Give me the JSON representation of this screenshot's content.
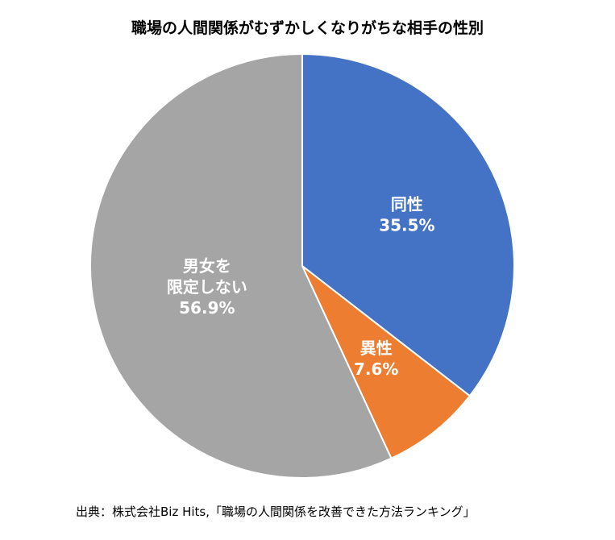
{
  "chart_data": {
    "type": "pie",
    "title": "職場の人間関係がむずかしくなりがちな相手の性別",
    "slices": [
      {
        "name": "同性",
        "label_lines": [
          "同性"
        ],
        "value": 35.5,
        "value_label": "35.5%",
        "color": "#4472c4"
      },
      {
        "name": "異性",
        "label_lines": [
          "異性"
        ],
        "value": 7.6,
        "value_label": "7.6%",
        "color": "#ed7d31"
      },
      {
        "name": "男女を限定しない",
        "label_lines": [
          "男女を",
          "限定しない"
        ],
        "value": 56.9,
        "value_label": "56.9%",
        "color": "#a5a5a5"
      }
    ],
    "start_angle": "12 o'clock",
    "direction": "clockwise",
    "slice_border_color": "#ffffff",
    "source": "出典：株式会社Biz Hits,「職場の人間関係を改善できた方法ランキング」"
  }
}
